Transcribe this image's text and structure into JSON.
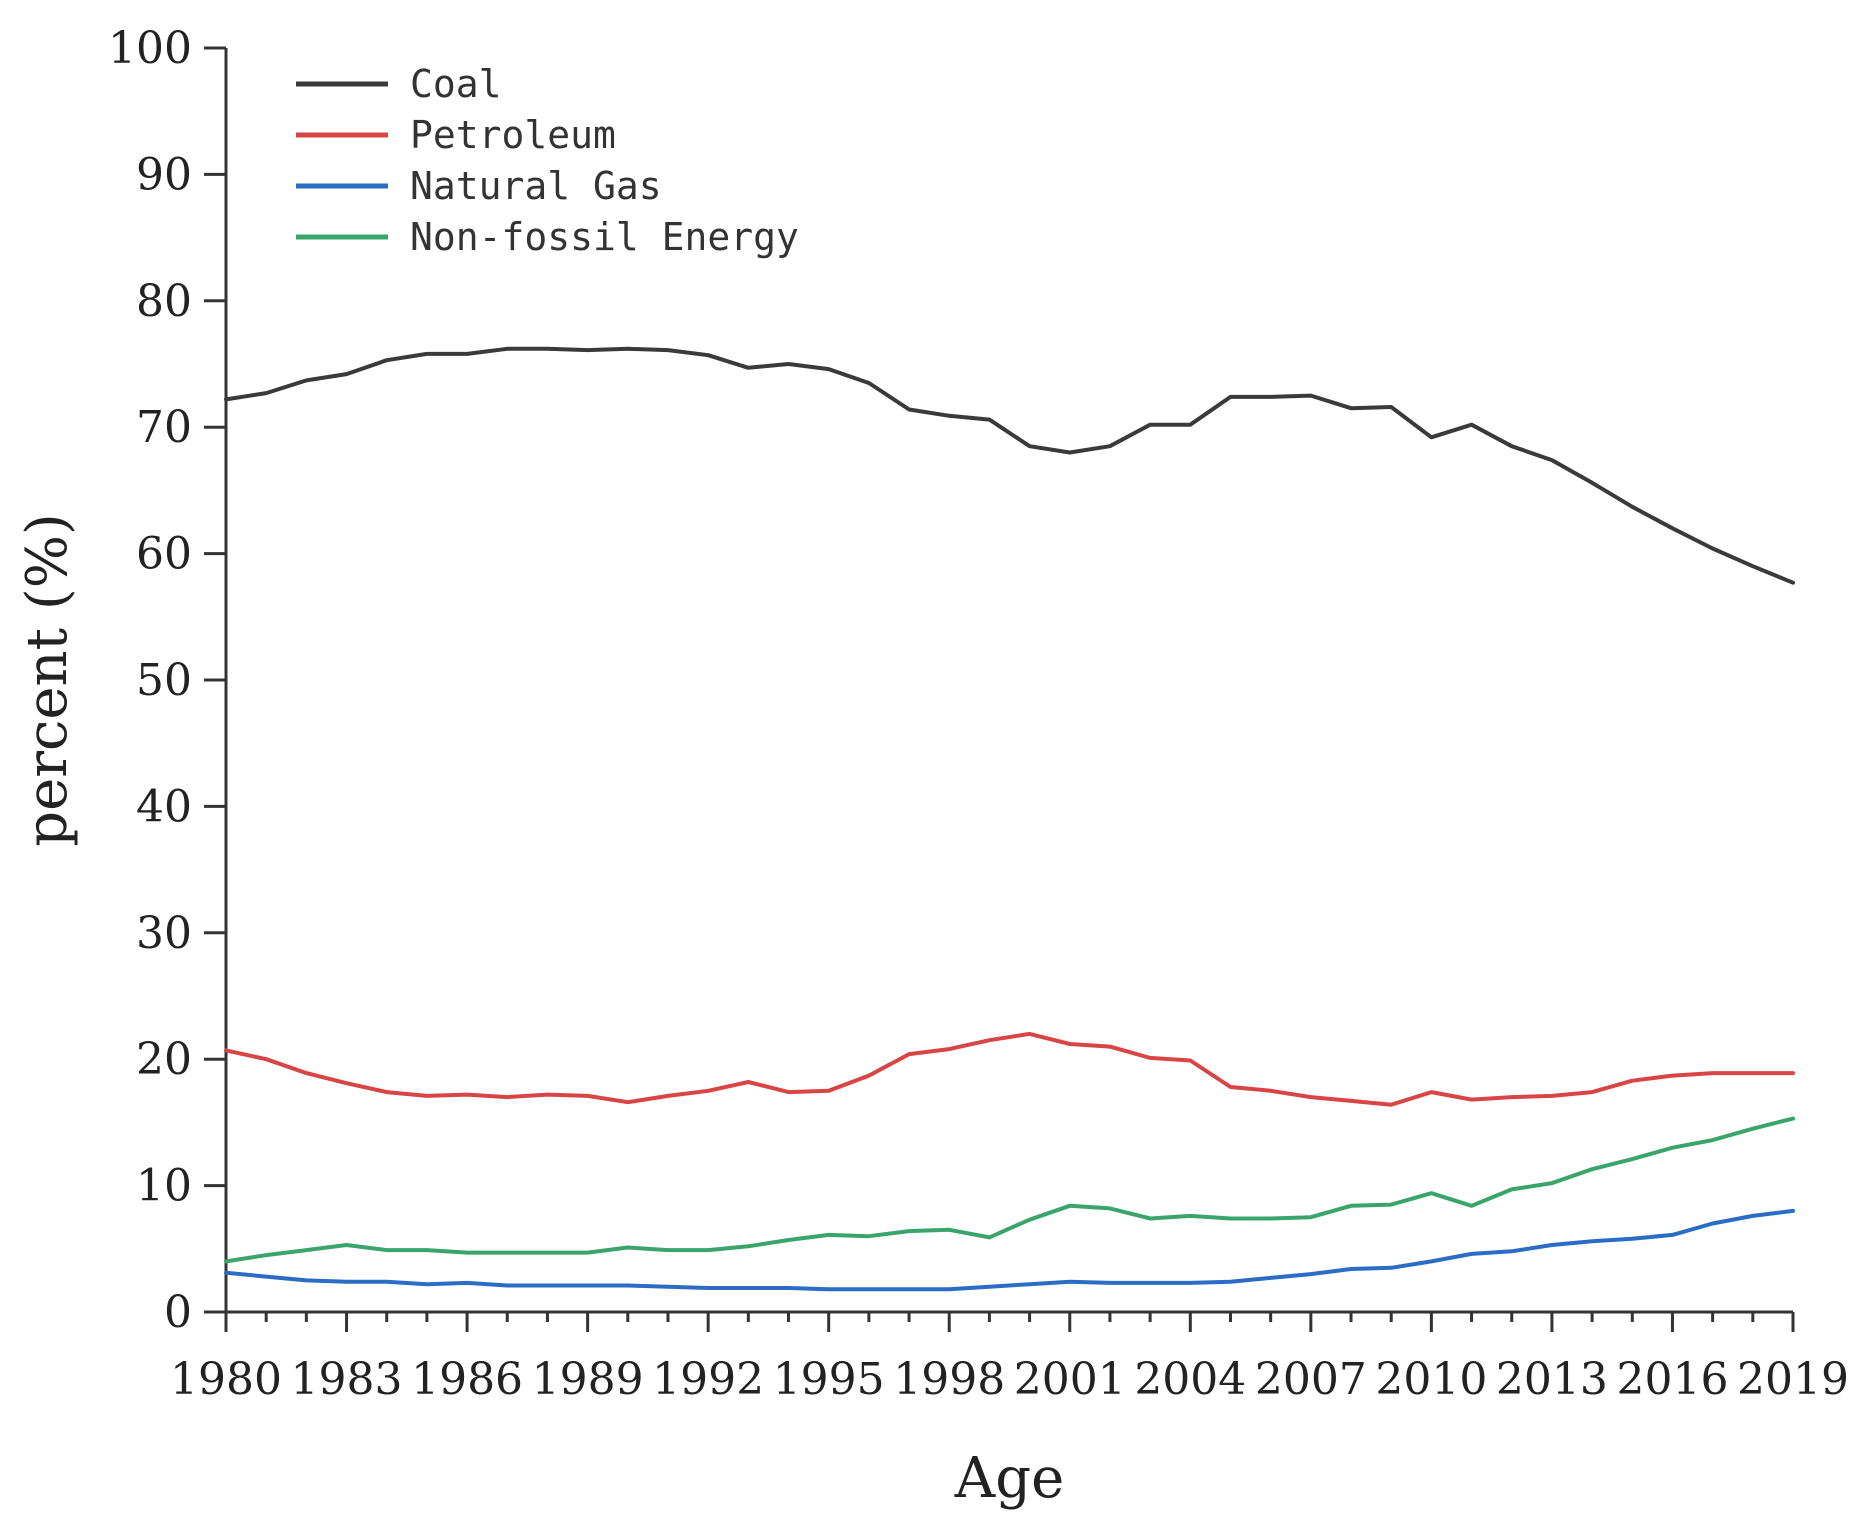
{
  "chart_data": {
    "type": "line",
    "title": "",
    "xlabel": "Age",
    "ylabel": "percent (%)",
    "xlim": [
      1980,
      2019
    ],
    "ylim": [
      0,
      100
    ],
    "x_ticks": [
      1980,
      1983,
      1986,
      1989,
      1992,
      1995,
      1998,
      2001,
      2004,
      2007,
      2010,
      2013,
      2016,
      2019
    ],
    "y_ticks": [
      0,
      10,
      20,
      30,
      40,
      50,
      60,
      70,
      80,
      90,
      100
    ],
    "grid": false,
    "legend_position": "top-left",
    "x": [
      1980,
      1981,
      1982,
      1983,
      1984,
      1985,
      1986,
      1987,
      1988,
      1989,
      1990,
      1991,
      1992,
      1993,
      1994,
      1995,
      1996,
      1997,
      1998,
      1999,
      2000,
      2001,
      2002,
      2003,
      2004,
      2005,
      2006,
      2007,
      2008,
      2009,
      2010,
      2011,
      2012,
      2013,
      2014,
      2015,
      2016,
      2017,
      2018,
      2019
    ],
    "series": [
      {
        "name": "Coal",
        "color": "#3a3a3a",
        "values": [
          72.2,
          72.7,
          73.7,
          74.2,
          75.3,
          75.8,
          75.8,
          76.2,
          76.2,
          76.1,
          76.2,
          76.1,
          75.7,
          74.7,
          75.0,
          74.6,
          73.5,
          71.4,
          70.9,
          70.6,
          68.5,
          68.0,
          68.5,
          70.2,
          70.2,
          72.4,
          72.4,
          72.5,
          71.5,
          71.6,
          69.2,
          70.2,
          68.5,
          67.4,
          65.6,
          63.7,
          62.0,
          60.4,
          59.0,
          57.7
        ]
      },
      {
        "name": "Petroleum",
        "color": "#d94444",
        "values": [
          20.7,
          20.0,
          18.9,
          18.1,
          17.4,
          17.1,
          17.2,
          17.0,
          17.2,
          17.1,
          16.6,
          17.1,
          17.5,
          18.2,
          17.4,
          17.5,
          18.7,
          20.4,
          20.8,
          21.5,
          22.0,
          21.2,
          21.0,
          20.1,
          19.9,
          17.8,
          17.5,
          17.0,
          16.7,
          16.4,
          17.4,
          16.8,
          17.0,
          17.1,
          17.4,
          18.3,
          18.7,
          18.9,
          18.9,
          18.9
        ]
      },
      {
        "name": "Natural Gas",
        "color": "#2b6cc4",
        "values": [
          3.1,
          2.8,
          2.5,
          2.4,
          2.4,
          2.2,
          2.3,
          2.1,
          2.1,
          2.1,
          2.1,
          2.0,
          1.9,
          1.9,
          1.9,
          1.8,
          1.8,
          1.8,
          1.8,
          2.0,
          2.2,
          2.4,
          2.3,
          2.3,
          2.3,
          2.4,
          2.7,
          3.0,
          3.4,
          3.5,
          4.0,
          4.6,
          4.8,
          5.3,
          5.6,
          5.8,
          6.1,
          7.0,
          7.6,
          8.0
        ]
      },
      {
        "name": "Non-fossil Energy",
        "color": "#3aa56b",
        "values": [
          4.0,
          4.5,
          4.9,
          5.3,
          4.9,
          4.9,
          4.7,
          4.7,
          4.7,
          4.7,
          5.1,
          4.9,
          4.9,
          5.2,
          5.7,
          6.1,
          6.0,
          6.4,
          6.5,
          5.9,
          7.3,
          8.4,
          8.2,
          7.4,
          7.6,
          7.4,
          7.4,
          7.5,
          8.4,
          8.5,
          9.4,
          8.4,
          9.7,
          10.2,
          11.3,
          12.1,
          13.0,
          13.6,
          14.5,
          15.3
        ]
      }
    ]
  }
}
